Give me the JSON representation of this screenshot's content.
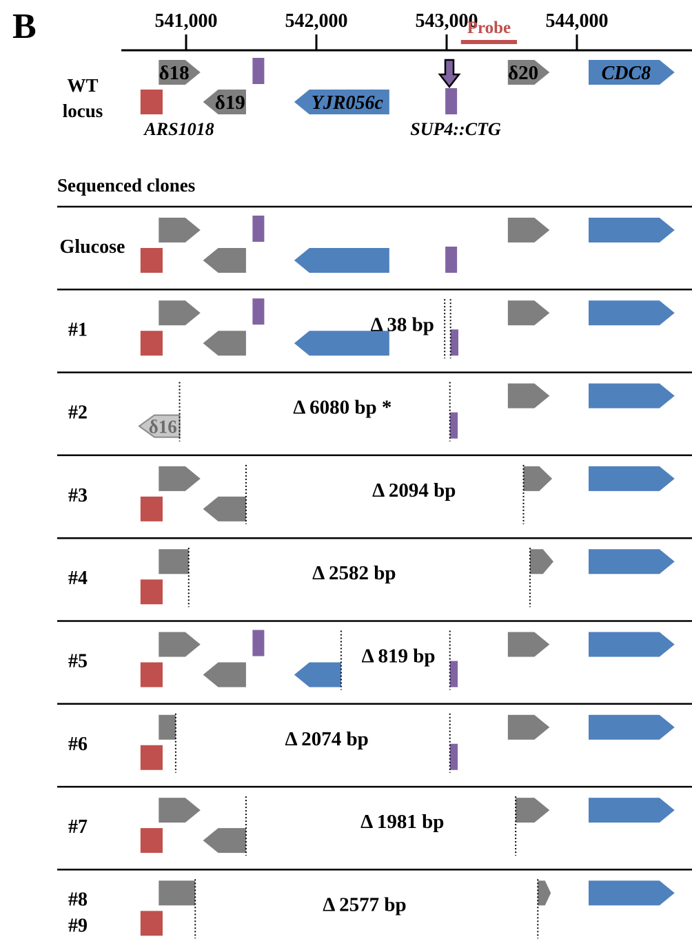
{
  "panel_letter": "B",
  "scale": {
    "ticks": [
      {
        "pos": 541000,
        "label": "541,000"
      },
      {
        "pos": 542000,
        "label": "542,000"
      },
      {
        "pos": 543000,
        "label": "543,000"
      },
      {
        "pos": 544000,
        "label": "544,000"
      }
    ],
    "probe_label": "Probe",
    "probe_start": 543110,
    "probe_end": 543540
  },
  "colors": {
    "delta": "#7f7f7f",
    "ars": "#c0504d",
    "gene": "#4f81bd",
    "trna": "#8064a2",
    "probe": "#c0504d",
    "ghost_fill": "#c8c8c8",
    "ghost_stroke": "#8a8a8a"
  },
  "wt": {
    "label_line1": "WT",
    "label_line2": "locus",
    "features": {
      "d18": {
        "name": "d18",
        "text": "δ18",
        "type": "delta",
        "strand": "+",
        "start": 540790,
        "end": 541110,
        "row": "top"
      },
      "d19": {
        "name": "d19",
        "text": "δ19",
        "type": "delta",
        "strand": "-",
        "start": 541130,
        "end": 541460,
        "row": "bottom"
      },
      "trnaL": {
        "name": "trna-left",
        "text": "",
        "type": "trna",
        "strand": "none",
        "start": 541510,
        "end": 541600,
        "row": "top"
      },
      "ars": {
        "name": "ars1018",
        "text": "",
        "type": "ars",
        "strand": "none",
        "start": 540650,
        "end": 540820,
        "row": "bottom"
      },
      "yjr": {
        "name": "yjr056c",
        "text": "YJR056c",
        "type": "gene",
        "strand": "-",
        "start": 541830,
        "end": 542560,
        "row": "bottom"
      },
      "sup4": {
        "name": "sup4-ctg",
        "text": "",
        "type": "trna",
        "strand": "none",
        "start": 542990,
        "end": 543080,
        "row": "bottom"
      },
      "d20": {
        "name": "d20",
        "text": "δ20",
        "type": "delta",
        "strand": "+",
        "start": 543470,
        "end": 543790,
        "row": "top"
      },
      "cdc8": {
        "name": "cdc8",
        "text": "CDC8",
        "type": "gene",
        "strand": "+",
        "start": 544090,
        "end": 544750,
        "row": "top"
      }
    },
    "ars_label": "ARS1018",
    "sup4_label": "SUP4::CTG"
  },
  "section_title": "Sequenced clones",
  "clones": [
    {
      "label": "Glucose",
      "delta_text": "",
      "delta_pos": 0,
      "features": [
        {
          "f": "d18"
        },
        {
          "f": "d19"
        },
        {
          "f": "trnaL"
        },
        {
          "f": "ars"
        },
        {
          "f": "yjr"
        },
        {
          "f": "sup4"
        },
        {
          "f": "d20"
        },
        {
          "f": "cdc8"
        }
      ],
      "cuts": []
    },
    {
      "label": "#1",
      "delta_text": "Δ 38 bp",
      "delta_pos": 542660,
      "features": [
        {
          "f": "d18"
        },
        {
          "f": "d19"
        },
        {
          "f": "trnaL"
        },
        {
          "f": "ars"
        },
        {
          "f": "yjr"
        },
        {
          "f": "sup4",
          "start": 543030,
          "end": 543090
        },
        {
          "f": "d20"
        },
        {
          "f": "cdc8"
        }
      ],
      "cuts": [
        542985,
        543030
      ]
    },
    {
      "label": "#2",
      "delta_text": "Δ 6080 bp *",
      "delta_pos": 542200,
      "features": [
        {
          "f": "ghost",
          "text": "δ16",
          "start": 540640,
          "end": 540950
        },
        {
          "f": "sup4",
          "start": 543025,
          "end": 543085
        },
        {
          "f": "d20"
        },
        {
          "f": "cdc8"
        }
      ],
      "cuts": [
        540950,
        543025
      ]
    },
    {
      "label": "#3",
      "delta_text": "Δ 2094 bp",
      "delta_pos": 542750,
      "features": [
        {
          "f": "d18"
        },
        {
          "f": "d19"
        },
        {
          "f": "ars"
        },
        {
          "f": "d20",
          "start": 543590,
          "end": 543810
        },
        {
          "f": "cdc8"
        }
      ],
      "cuts": [
        541460,
        543590
      ]
    },
    {
      "label": "#4",
      "delta_text": "Δ 2582 bp",
      "delta_pos": 542290,
      "features": [
        {
          "f": "d18",
          "start": 540790,
          "end": 541020,
          "shape": "rect"
        },
        {
          "f": "ars"
        },
        {
          "f": "d20",
          "start": 543640,
          "end": 543820
        },
        {
          "f": "cdc8"
        }
      ],
      "cuts": [
        541020,
        543640
      ]
    },
    {
      "label": "#5",
      "delta_text": "Δ 819 bp",
      "delta_pos": 542630,
      "features": [
        {
          "f": "d18"
        },
        {
          "f": "d19"
        },
        {
          "f": "trnaL"
        },
        {
          "f": "ars"
        },
        {
          "f": "yjr",
          "start": 541830,
          "end": 542190
        },
        {
          "f": "sup4",
          "start": 543025,
          "end": 543085
        },
        {
          "f": "d20"
        },
        {
          "f": "cdc8"
        }
      ],
      "cuts": [
        542190,
        543025
      ]
    },
    {
      "label": "#6",
      "delta_text": "Δ 2074 bp",
      "delta_pos": 542080,
      "features": [
        {
          "f": "d18",
          "start": 540790,
          "end": 540920,
          "shape": "rect"
        },
        {
          "f": "ars"
        },
        {
          "f": "sup4",
          "start": 543025,
          "end": 543085
        },
        {
          "f": "d20"
        },
        {
          "f": "cdc8"
        }
      ],
      "cuts": [
        540920,
        543025
      ]
    },
    {
      "label": "#7",
      "delta_text": "Δ 1981 bp",
      "delta_pos": 542660,
      "features": [
        {
          "f": "d18"
        },
        {
          "f": "d19"
        },
        {
          "f": "ars"
        },
        {
          "f": "d20",
          "start": 543530,
          "end": 543790
        },
        {
          "f": "cdc8"
        }
      ],
      "cuts": [
        541460,
        543530
      ]
    },
    {
      "label": "#8",
      "label2": "#9",
      "delta_text": "Δ 2577 bp",
      "delta_pos": 542370,
      "features": [
        {
          "f": "d18",
          "start": 540790,
          "end": 541070,
          "shape": "rect"
        },
        {
          "f": "ars"
        },
        {
          "f": "d20",
          "start": 543700,
          "end": 543800
        },
        {
          "f": "cdc8"
        }
      ],
      "cuts": [
        541070,
        543700
      ]
    }
  ]
}
